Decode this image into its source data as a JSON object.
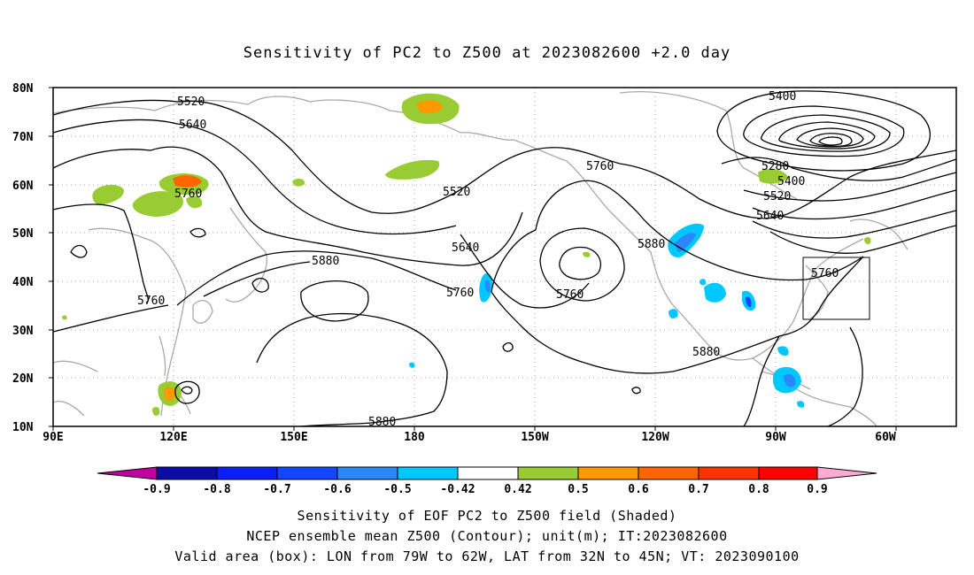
{
  "title": "Sensitivity of PC2 to Z500 at 2023082600 +2.0 day",
  "lat_labels": [
    "80N",
    "70N",
    "60N",
    "50N",
    "40N",
    "30N",
    "20N",
    "10N"
  ],
  "lon_labels": [
    "90E",
    "120E",
    "150E",
    "180",
    "150W",
    "120W",
    "90W",
    "60W"
  ],
  "contour_labels": [
    "5520",
    "5640",
    "5760",
    "5400",
    "5280",
    "5400",
    "5520",
    "5640",
    "5760",
    "5880",
    "5760",
    "5520",
    "5640",
    "5760",
    "5880",
    "5760",
    "5880",
    "5880"
  ],
  "colorbar": {
    "values": [
      "-0.9",
      "-0.8",
      "-0.7",
      "-0.6",
      "-0.5",
      "-0.42",
      "0.42",
      "0.5",
      "0.6",
      "0.7",
      "0.8",
      "0.9"
    ],
    "colors": [
      "#c0009f",
      "#0c0ca8",
      "#0a1ff5",
      "#1446ff",
      "#2b86ff",
      "#00c7ff",
      "#ffffff",
      "#99cc33",
      "#ff9900",
      "#ff6600",
      "#ff3300",
      "#ff0000",
      "#ffaad0"
    ]
  },
  "footer": [
    "Sensitivity of EOF PC2 to Z500 field (Shaded)",
    "NCEP ensemble mean Z500 (Contour); unit(m); IT:2023082600",
    "Valid area (box): LON from 79W to 62W, LAT from 32N to 45N; VT: 2023090100"
  ]
}
